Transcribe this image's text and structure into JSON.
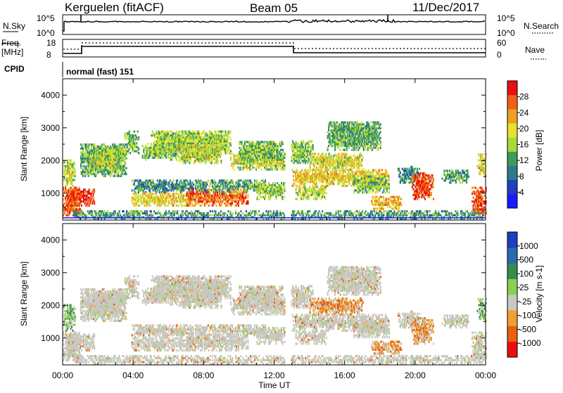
{
  "header": {
    "radar": "Kerguelen (fitACF)",
    "beam": "Beam 05",
    "date": "11/Dec/2017"
  },
  "top_panels": {
    "nsky_label": "N.Sky",
    "nsky_ticks": [
      "10^5",
      "10^0"
    ],
    "nsearch_label": "N.Search",
    "freq_label_1": "Freq.",
    "freq_label_2": "[MHz]",
    "freq_ticks": [
      "18",
      "8"
    ],
    "nave_label": "Nave",
    "nave_ticks": [
      "60",
      "0"
    ],
    "cpid_label": "CPID",
    "cpid_value": "normal (fast) 151"
  },
  "colors": {
    "power_scale": [
      "#1a1aff",
      "#1f3fbf",
      "#2e7a8c",
      "#3b9c5a",
      "#a8d83a",
      "#e8e030",
      "#f0a020",
      "#f06018",
      "#e81010"
    ],
    "velocity_scale": [
      "#1a3fbf",
      "#2a6ab0",
      "#3a8a50",
      "#8ad050",
      "#c8c8c0",
      "#f0a030",
      "#e86010",
      "#e81010"
    ]
  },
  "chart_data": {
    "type": "heatmap",
    "x_axis": {
      "label": "Time UT",
      "ticks": [
        "00:00",
        "04:00",
        "08:00",
        "12:00",
        "16:00",
        "20:00",
        "00:00"
      ],
      "range_hours": [
        0,
        24
      ]
    },
    "panels": [
      {
        "name": "power",
        "ylabel": "Slant Range [km]",
        "yticks": [
          "4000",
          "3000",
          "2000",
          "1000"
        ],
        "ylim_km": [
          180,
          4500
        ],
        "colorbar_label": "Power [dB]",
        "colorbar_ticks": [
          "28",
          "24",
          "20",
          "16",
          "12",
          "8",
          "4"
        ],
        "colorbar_range": [
          0,
          32
        ]
      },
      {
        "name": "velocity",
        "ylabel": "Slant Range [km]",
        "yticks": [
          "4000",
          "3000",
          "2000",
          "1000"
        ],
        "ylim_km": [
          180,
          4500
        ],
        "colorbar_label": "Velocity [m s-1]",
        "colorbar_ticks": [
          "1000",
          "500",
          "100",
          "25",
          "-25",
          "-100",
          "-500",
          "-1000"
        ]
      }
    ]
  }
}
